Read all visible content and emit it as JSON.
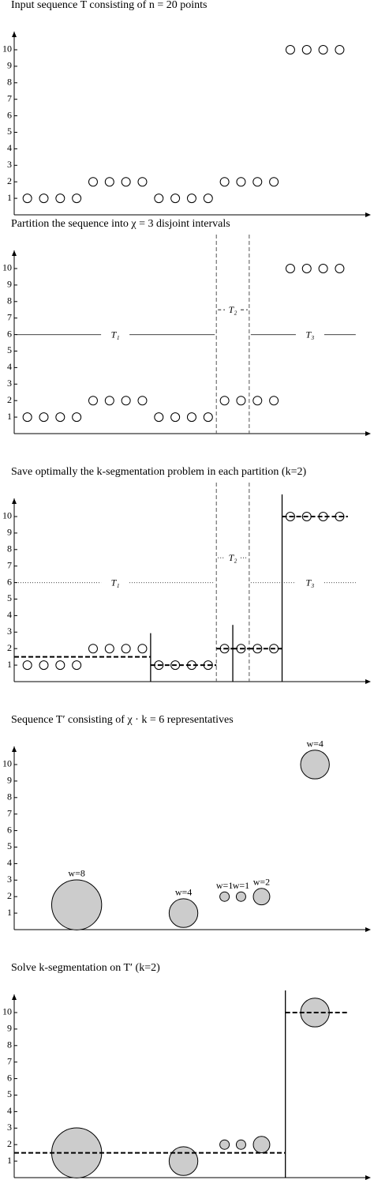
{
  "chart_data": [
    {
      "type": "scatter",
      "title": "Input sequence T consisting of n = 20 points",
      "x": [
        1,
        2,
        3,
        4,
        5,
        6,
        7,
        8,
        9,
        10,
        11,
        12,
        13,
        14,
        15,
        16,
        17,
        18,
        19,
        20
      ],
      "values": [
        1,
        1,
        1,
        1,
        2,
        2,
        2,
        2,
        1,
        1,
        1,
        1,
        2,
        2,
        2,
        2,
        10,
        10,
        10,
        10
      ],
      "xlim": [
        0.2,
        21.9
      ],
      "ylim": [
        0,
        11.1
      ],
      "yticks": [
        1,
        2,
        3,
        4,
        5,
        6,
        7,
        8,
        9,
        10
      ]
    },
    {
      "type": "scatter",
      "title": "Partition the sequence into χ = 3 disjoint intervals",
      "x": [
        1,
        2,
        3,
        4,
        5,
        6,
        7,
        8,
        9,
        10,
        11,
        12,
        13,
        14,
        15,
        16,
        17,
        18,
        19,
        20
      ],
      "values": [
        1,
        1,
        1,
        1,
        2,
        2,
        2,
        2,
        1,
        1,
        1,
        1,
        2,
        2,
        2,
        2,
        10,
        10,
        10,
        10
      ],
      "xlim": [
        0.2,
        21.9
      ],
      "ylim": [
        0,
        11.1
      ],
      "yticks": [
        1,
        2,
        3,
        4,
        5,
        6,
        7,
        8,
        9,
        10
      ],
      "partitions": [
        12.5,
        14.5
      ],
      "partition_labels": [
        "T₁",
        "T₂",
        "T₃"
      ],
      "partition_style": "solid"
    },
    {
      "type": "scatter",
      "title": "Save optimally the k-segmentation problem in each partition (k=2)",
      "x": [
        1,
        2,
        3,
        4,
        5,
        6,
        7,
        8,
        9,
        10,
        11,
        12,
        13,
        14,
        15,
        16,
        17,
        18,
        19,
        20
      ],
      "values": [
        1,
        1,
        1,
        1,
        2,
        2,
        2,
        2,
        1,
        1,
        1,
        1,
        2,
        2,
        2,
        2,
        10,
        10,
        10,
        10
      ],
      "xlim": [
        0.2,
        21.9
      ],
      "ylim": [
        0,
        11.1
      ],
      "yticks": [
        1,
        2,
        3,
        4,
        5,
        6,
        7,
        8,
        9,
        10
      ],
      "partitions": [
        12.5,
        14.5
      ],
      "partition_labels": [
        "T₁",
        "T₂",
        "T₃"
      ],
      "partition_style": "dotted",
      "segments": [
        {
          "start": 0.2,
          "end": 8.5,
          "value": 1.5
        },
        {
          "start": 8.5,
          "end": 12.5,
          "value": 1
        },
        {
          "start": 12.5,
          "end": 13.5,
          "value": 2
        },
        {
          "start": 13.5,
          "end": 14.5,
          "value": 2
        },
        {
          "start": 14.5,
          "end": 16.5,
          "value": 2
        },
        {
          "start": 16.5,
          "end": 20.5,
          "value": 10
        }
      ]
    },
    {
      "type": "bubble",
      "title": "Sequence T′ consisting of χ · k = 6 representatives",
      "x": [
        4,
        10.5,
        13,
        14,
        15.25,
        18.5
      ],
      "values": [
        1.5,
        1,
        2,
        2,
        2,
        10
      ],
      "weights": [
        8,
        4,
        1,
        1,
        2,
        4
      ],
      "value_labels": [
        "w=8",
        "w=4",
        "w=1",
        "w=1",
        "w=2",
        "w=4"
      ],
      "xlim": [
        0.2,
        21.9
      ],
      "ylim": [
        0,
        11.1
      ],
      "yticks": [
        1,
        2,
        3,
        4,
        5,
        6,
        7,
        8,
        9,
        10
      ]
    },
    {
      "type": "bubble",
      "title": "Solve k-segmentation on T′ (k=2)",
      "x": [
        4,
        10.5,
        13,
        14,
        15.25,
        18.5
      ],
      "values": [
        1.5,
        1,
        2,
        2,
        2,
        10
      ],
      "weights": [
        8,
        4,
        1,
        1,
        2,
        4
      ],
      "xlim": [
        0.2,
        21.9
      ],
      "ylim": [
        0,
        11.1
      ],
      "yticks": [
        1,
        2,
        3,
        4,
        5,
        6,
        7,
        8,
        9,
        10
      ],
      "segments": [
        {
          "start": 0.2,
          "end": 16.7,
          "value": 1.5
        },
        {
          "start": 16.7,
          "end": 20.5,
          "value": 10
        }
      ]
    }
  ]
}
